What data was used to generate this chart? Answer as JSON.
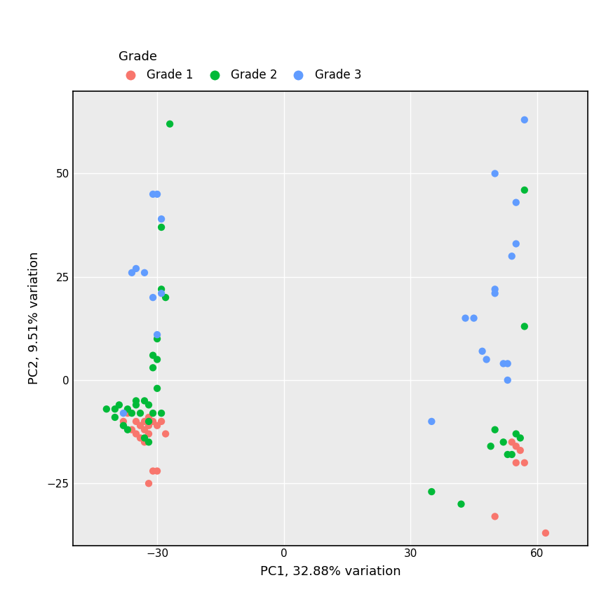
{
  "xlabel": "PC1, 32.88% variation",
  "ylabel": "PC2, 9.51% variation",
  "xlim": [
    -50,
    72
  ],
  "ylim": [
    -40,
    70
  ],
  "xticks": [
    -30,
    0,
    30,
    60
  ],
  "yticks": [
    -25,
    0,
    25,
    50
  ],
  "background_color": "#EBEBEB",
  "grid_color": "#FFFFFF",
  "legend_title": "Grade",
  "legend_entries": [
    "Grade 1",
    "Grade 2",
    "Grade 3"
  ],
  "colors": {
    "Grade 1": "#F8766D",
    "Grade 2": "#00BA38",
    "Grade 3": "#619CFF"
  },
  "points": {
    "Grade 1": [
      [
        -38,
        -10
      ],
      [
        -37,
        -8
      ],
      [
        -36,
        -12
      ],
      [
        -35,
        -10
      ],
      [
        -35,
        -13
      ],
      [
        -34,
        -11
      ],
      [
        -34,
        -14
      ],
      [
        -33,
        -10
      ],
      [
        -33,
        -12
      ],
      [
        -33,
        -15
      ],
      [
        -32,
        -9
      ],
      [
        -32,
        -11
      ],
      [
        -32,
        -13
      ],
      [
        -32,
        -25
      ],
      [
        -31,
        -22
      ],
      [
        -31,
        -10
      ],
      [
        -30,
        -11
      ],
      [
        -30,
        -22
      ],
      [
        -29,
        -10
      ],
      [
        -28,
        -13
      ],
      [
        50,
        -33
      ],
      [
        54,
        -15
      ],
      [
        55,
        -16
      ],
      [
        55,
        -20
      ],
      [
        56,
        -17
      ],
      [
        57,
        -20
      ],
      [
        62,
        -37
      ]
    ],
    "Grade 2": [
      [
        -42,
        -7
      ],
      [
        -40,
        -7
      ],
      [
        -40,
        -9
      ],
      [
        -39,
        -6
      ],
      [
        -38,
        -11
      ],
      [
        -37,
        -7
      ],
      [
        -37,
        -12
      ],
      [
        -36,
        -8
      ],
      [
        -35,
        -5
      ],
      [
        -35,
        -6
      ],
      [
        -34,
        -8
      ],
      [
        -33,
        -5
      ],
      [
        -33,
        -14
      ],
      [
        -32,
        -15
      ],
      [
        -32,
        -6
      ],
      [
        -32,
        -10
      ],
      [
        -31,
        -8
      ],
      [
        -31,
        3
      ],
      [
        -31,
        6
      ],
      [
        -30,
        -2
      ],
      [
        -30,
        5
      ],
      [
        -30,
        10
      ],
      [
        -29,
        -8
      ],
      [
        -29,
        22
      ],
      [
        -29,
        37
      ],
      [
        -28,
        20
      ],
      [
        -27,
        62
      ],
      [
        35,
        -27
      ],
      [
        42,
        -30
      ],
      [
        49,
        -16
      ],
      [
        50,
        -12
      ],
      [
        52,
        -15
      ],
      [
        53,
        -18
      ],
      [
        54,
        -18
      ],
      [
        55,
        -13
      ],
      [
        56,
        -14
      ],
      [
        57,
        13
      ],
      [
        57,
        46
      ]
    ],
    "Grade 3": [
      [
        -38,
        -8
      ],
      [
        -36,
        26
      ],
      [
        -35,
        27
      ],
      [
        -33,
        26
      ],
      [
        -31,
        20
      ],
      [
        -31,
        45
      ],
      [
        -30,
        45
      ],
      [
        -30,
        11
      ],
      [
        -29,
        21
      ],
      [
        -29,
        39
      ],
      [
        35,
        -10
      ],
      [
        43,
        15
      ],
      [
        45,
        15
      ],
      [
        47,
        7
      ],
      [
        48,
        5
      ],
      [
        50,
        21
      ],
      [
        50,
        22
      ],
      [
        50,
        50
      ],
      [
        52,
        4
      ],
      [
        53,
        0
      ],
      [
        53,
        4
      ],
      [
        54,
        30
      ],
      [
        55,
        33
      ],
      [
        55,
        43
      ],
      [
        57,
        63
      ]
    ]
  },
  "point_size": 55,
  "fig_width": 8.64,
  "fig_height": 8.64,
  "dpi": 100
}
